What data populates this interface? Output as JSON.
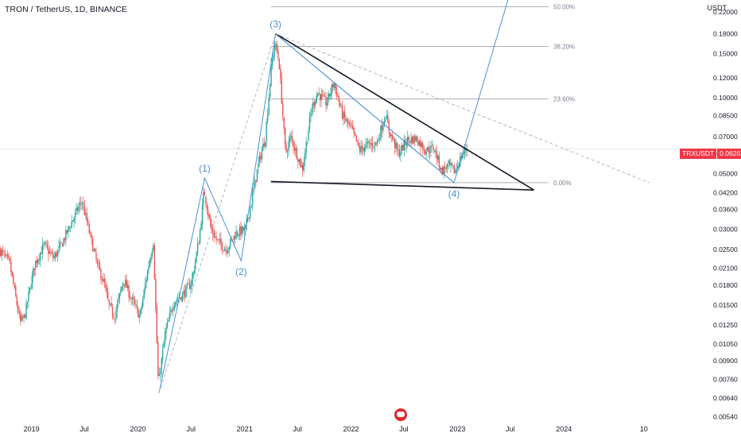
{
  "header": {
    "symbol": "TRON / TetherUS, 1D, BINANCE"
  },
  "axis": {
    "unit": "USDT"
  },
  "price_badge": {
    "ticker": "TRXUSDT",
    "price": "0.06263"
  },
  "chart_data": {
    "type": "candlestick",
    "title": "TRON / TetherUS, 1D, BINANCE",
    "y_scale": "log",
    "y_unit": "USDT",
    "y_ticks": [
      0.22,
      0.18,
      0.15,
      0.12,
      0.1,
      0.085,
      0.07,
      0.06,
      0.05,
      0.042,
      0.036,
      0.03,
      0.025,
      0.021,
      0.018,
      0.015,
      0.0125,
      0.0105,
      0.009,
      0.0076,
      0.0064,
      0.0054
    ],
    "y_tick_labels": [
      "0.22000",
      "0.18000",
      "0.15000",
      "0.12000",
      "0.10000",
      "0.08500",
      "0.07000",
      "0.06000",
      "0.05000",
      "0.04200",
      "0.03600",
      "0.03000",
      "0.02500",
      "0.02100",
      "0.01800",
      "0.01500",
      "0.01250",
      "0.01050",
      "0.00900",
      "0.00760",
      "0.00640",
      "0.00540"
    ],
    "x_ticks": [
      "2019",
      "Jul",
      "2020",
      "Jul",
      "2021",
      "Jul",
      "2022",
      "Jul",
      "2023",
      "Jul",
      "2024",
      "10"
    ],
    "x_tick_dates": [
      "2019-01-01",
      "2019-07-01",
      "2020-01-01",
      "2020-07-01",
      "2021-01-01",
      "2021-07-01",
      "2022-01-01",
      "2022-07-01",
      "2023-01-01",
      "2023-07-01",
      "2024-01-01",
      "2024-10-01"
    ],
    "x_range": [
      "2018-09-15",
      "2025-02-15"
    ],
    "y_range": [
      0.005,
      0.245
    ],
    "price_path": [
      [
        "2018-09-15",
        0.025
      ],
      [
        "2018-10-20",
        0.022
      ],
      [
        "2018-11-25",
        0.0128
      ],
      [
        "2018-12-10",
        0.0135
      ],
      [
        "2019-01-15",
        0.022
      ],
      [
        "2019-02-15",
        0.026
      ],
      [
        "2019-03-20",
        0.023
      ],
      [
        "2019-04-15",
        0.026
      ],
      [
        "2019-05-15",
        0.031
      ],
      [
        "2019-06-10",
        0.036
      ],
      [
        "2019-06-25",
        0.039
      ],
      [
        "2019-07-15",
        0.031
      ],
      [
        "2019-08-15",
        0.022
      ],
      [
        "2019-09-10",
        0.018
      ],
      [
        "2019-09-25",
        0.015
      ],
      [
        "2019-10-15",
        0.0135
      ],
      [
        "2019-11-15",
        0.019
      ],
      [
        "2019-12-10",
        0.016
      ],
      [
        "2020-01-10",
        0.0135
      ],
      [
        "2020-02-05",
        0.0205
      ],
      [
        "2020-02-25",
        0.027
      ],
      [
        "2020-03-13",
        0.0072
      ],
      [
        "2020-04-05",
        0.0115
      ],
      [
        "2020-05-05",
        0.0155
      ],
      [
        "2020-06-05",
        0.0165
      ],
      [
        "2020-07-05",
        0.0185
      ],
      [
        "2020-08-01",
        0.028
      ],
      [
        "2020-08-17",
        0.043
      ],
      [
        "2020-09-10",
        0.03
      ],
      [
        "2020-10-01",
        0.027
      ],
      [
        "2020-11-01",
        0.025
      ],
      [
        "2020-12-05",
        0.029
      ],
      [
        "2021-01-05",
        0.03
      ],
      [
        "2021-01-25",
        0.038
      ],
      [
        "2021-02-20",
        0.055
      ],
      [
        "2021-03-15",
        0.07
      ],
      [
        "2021-04-05",
        0.135
      ],
      [
        "2021-04-17",
        0.165
      ],
      [
        "2021-05-01",
        0.14
      ],
      [
        "2021-05-23",
        0.06
      ],
      [
        "2021-06-10",
        0.07
      ],
      [
        "2021-07-20",
        0.052
      ],
      [
        "2021-08-20",
        0.09
      ],
      [
        "2021-09-10",
        0.105
      ],
      [
        "2021-10-10",
        0.095
      ],
      [
        "2021-11-05",
        0.115
      ],
      [
        "2021-12-05",
        0.085
      ],
      [
        "2022-01-05",
        0.075
      ],
      [
        "2022-02-01",
        0.062
      ],
      [
        "2022-03-01",
        0.065
      ],
      [
        "2022-04-01",
        0.066
      ],
      [
        "2022-05-01",
        0.086
      ],
      [
        "2022-05-12",
        0.075
      ],
      [
        "2022-06-15",
        0.06
      ],
      [
        "2022-07-15",
        0.068
      ],
      [
        "2022-08-15",
        0.069
      ],
      [
        "2022-09-15",
        0.062
      ],
      [
        "2022-10-15",
        0.063
      ],
      [
        "2022-11-10",
        0.051
      ],
      [
        "2022-12-01",
        0.054
      ],
      [
        "2022-12-25",
        0.051
      ],
      [
        "2023-01-15",
        0.058
      ],
      [
        "2023-02-01",
        0.0626
      ]
    ],
    "trend_lines": [
      {
        "role": "wave-count",
        "points": [
          [
            "2020-03-13",
            0.0067
          ],
          [
            "2020-08-17",
            0.048
          ],
          [
            "2020-12-20",
            0.0225
          ],
          [
            "2021-04-17",
            0.18
          ],
          [
            "2022-12-20",
            0.046
          ],
          [
            "2023-07-15",
            0.3
          ]
        ]
      },
      {
        "role": "wave-(3)-(4) line",
        "points": [
          [
            "2021-04-17",
            0.18
          ],
          [
            "2022-12-20",
            0.046
          ]
        ]
      },
      {
        "role": "upper triangle side",
        "points": [
          [
            "2021-04-17",
            0.18
          ],
          [
            "2023-09-20",
            0.043
          ]
        ]
      },
      {
        "role": "lower triangle side",
        "points": [
          [
            "2021-04-01",
            0.0465
          ],
          [
            "2023-09-20",
            0.043
          ]
        ]
      },
      {
        "role": "dashed projection",
        "points": [
          [
            "2020-03-13",
            0.0067
          ],
          [
            "2021-04-17",
            0.18
          ],
          [
            "2024-10-20",
            0.046
          ]
        ]
      }
    ],
    "wave_labels": [
      {
        "text": "(1)",
        "date": "2020-08-17",
        "price": 0.048
      },
      {
        "text": "(2)",
        "date": "2020-12-20",
        "price": 0.0225
      },
      {
        "text": "(3)",
        "date": "2021-04-17",
        "price": 0.18
      },
      {
        "text": "(4)",
        "date": "2022-12-20",
        "price": 0.046
      }
    ],
    "fib_levels": [
      {
        "label": "50.00%",
        "price": 0.23
      },
      {
        "label": "38.20%",
        "price": 0.16
      },
      {
        "label": "23.60%",
        "price": 0.099
      },
      {
        "label": "0.00%",
        "price": 0.046
      }
    ],
    "last_price": 0.06263,
    "colors": {
      "up": "#26a69a",
      "down": "#ef5350",
      "wave": "#4a90d9",
      "trend": "#131722",
      "fib": "#7c7f8e",
      "dashed": "#b2b5be",
      "badge": "#f23645",
      "text": "#131722"
    }
  }
}
